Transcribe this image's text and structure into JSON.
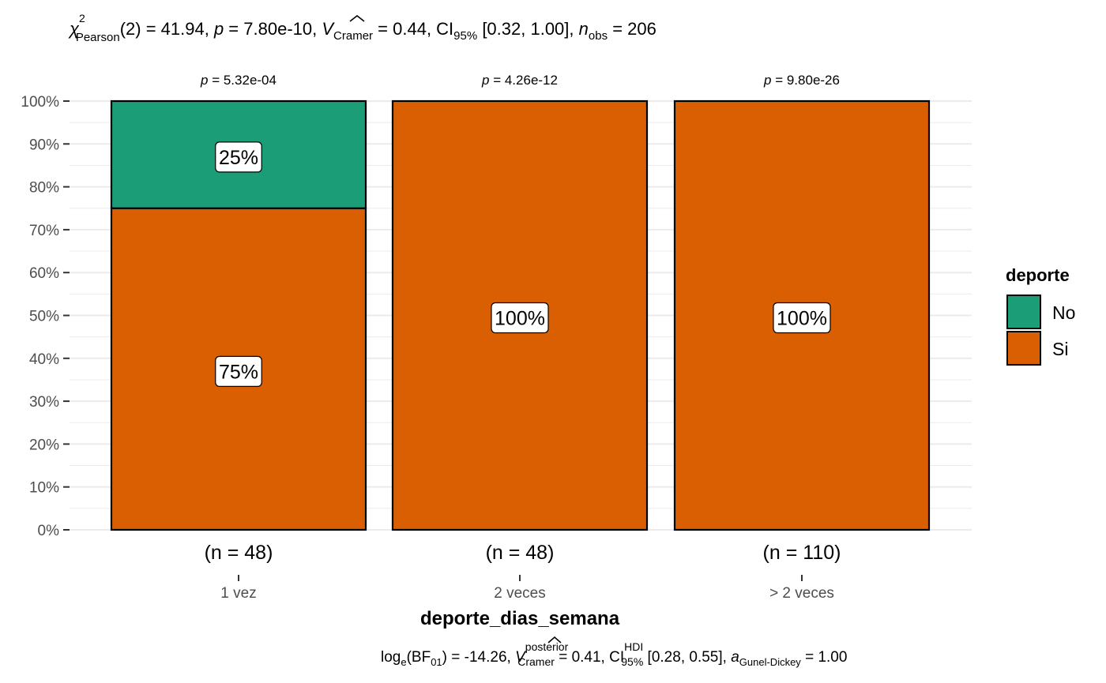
{
  "chart_data": {
    "type": "bar",
    "stacked": true,
    "percent": true,
    "subtitle_parts": {
      "chi": "χ",
      "chi_sup": "2",
      "chi_sub": "Pearson",
      "stat": "(2) = 41.94, ",
      "p_label": "p",
      "p_value": " = 7.80e-10, ",
      "v_label": "V",
      "v_sub": "Cramer",
      "v_value": " = 0.44, CI",
      "ci_sub": "95%",
      "ci_value": " [0.32, 1.00], ",
      "n_label": "n",
      "n_sub": "obs",
      "n_value": " = 206"
    },
    "caption_parts": {
      "log": "log",
      "log_sub": "e",
      "bf_open": "(BF",
      "bf_sub": "01",
      "bf_value": ") = -14.26, ",
      "v_label": "V",
      "v_sup": "posterior",
      "v_sub": "Cramer",
      "v_value": " = 0.41, CI",
      "ci_sup": "HDI",
      "ci_sub": "95%",
      "ci_value": " [0.28, 0.55], ",
      "a_label": "a",
      "a_sub": "Gunel-Dickey",
      "a_value": " = 1.00"
    },
    "xlabel": "deporte_dias_semana",
    "ylabel": "",
    "categories": [
      "1 vez",
      "2 veces",
      "> 2 veces"
    ],
    "counts": [
      "(n = 48)",
      "(n = 48)",
      "(n = 110)"
    ],
    "pvalues": [
      "= 5.32e-04",
      "= 4.26e-12",
      "= 9.80e-26"
    ],
    "p_symbol": "p",
    "series": [
      {
        "name": "Si",
        "color": "#D95F02",
        "values": [
          75,
          100,
          100
        ],
        "labels": [
          "75%",
          "100%",
          "100%"
        ]
      },
      {
        "name": "No",
        "color": "#1B9E77",
        "values": [
          25,
          0,
          0
        ],
        "labels": [
          "25%",
          "",
          ""
        ]
      }
    ],
    "yticks": [
      0,
      10,
      20,
      30,
      40,
      50,
      60,
      70,
      80,
      90,
      100
    ],
    "ytick_labels": [
      "0%",
      "10%",
      "20%",
      "30%",
      "40%",
      "50%",
      "60%",
      "70%",
      "80%",
      "90%",
      "100%"
    ],
    "ylim": [
      0,
      100
    ],
    "grid": true,
    "legend": {
      "title": "deporte",
      "position": "right",
      "items": [
        {
          "name": "No",
          "color": "#1B9E77"
        },
        {
          "name": "Si",
          "color": "#D95F02"
        }
      ]
    }
  }
}
